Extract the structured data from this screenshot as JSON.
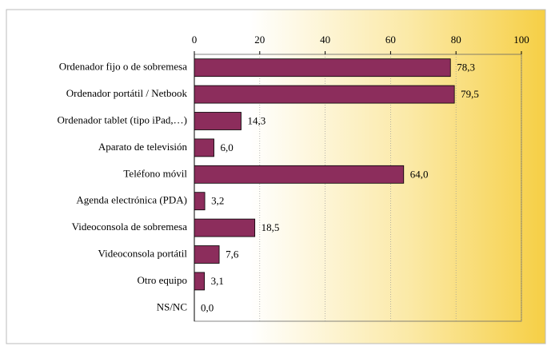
{
  "chart_data": {
    "type": "bar",
    "orientation": "horizontal",
    "categories": [
      "Ordenador fijo o de sobremesa",
      "Ordenador portátil / Netbook",
      "Ordenador tablet (tipo iPad,…)",
      "Aparato de televisión",
      "Teléfono móvil",
      "Agenda electrónica (PDA)",
      "Videoconsola de sobremesa",
      "Videoconsola portátil",
      "Otro equipo",
      "NS/NC"
    ],
    "values": [
      78.3,
      79.5,
      14.3,
      6.0,
      64.0,
      3.2,
      18.5,
      7.6,
      3.1,
      0.0
    ],
    "value_labels": [
      "78,3",
      "79,5",
      "14,3",
      "6,0",
      "64,0",
      "3,2",
      "18,5",
      "7,6",
      "3,1",
      "0,0"
    ],
    "color": "#8c2d5c",
    "xlim": [
      0,
      100
    ],
    "xticks": [
      0,
      20,
      40,
      60,
      80,
      100
    ],
    "grid": true
  }
}
